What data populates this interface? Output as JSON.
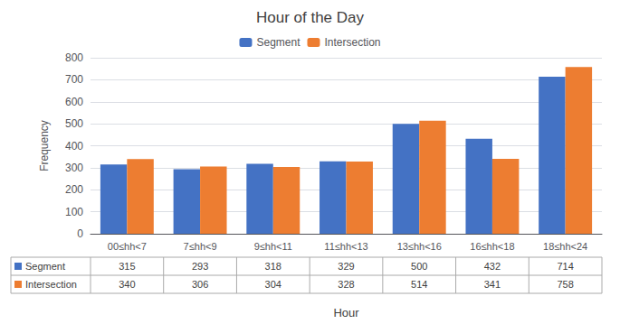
{
  "chart_data": {
    "type": "bar",
    "title": "Hour of the Day",
    "xlabel": "Hour",
    "ylabel": "Frequency",
    "categories": [
      "00≤hh<7",
      "7≤hh<9",
      "9≤hh<11",
      "11≤hh<13",
      "13≤hh<16",
      "16≤hh<18",
      "18≤hh<24"
    ],
    "series": [
      {
        "name": "Segment",
        "color": "#4472C4",
        "values": [
          315,
          293,
          318,
          329,
          500,
          432,
          714
        ]
      },
      {
        "name": "Intersection",
        "color": "#ED7D31",
        "values": [
          340,
          306,
          304,
          328,
          514,
          341,
          758
        ]
      }
    ],
    "ylim": [
      0,
      800
    ],
    "yticks": [
      0,
      100,
      200,
      300,
      400,
      500,
      600,
      700,
      800
    ],
    "grid": true,
    "legend": "top"
  }
}
